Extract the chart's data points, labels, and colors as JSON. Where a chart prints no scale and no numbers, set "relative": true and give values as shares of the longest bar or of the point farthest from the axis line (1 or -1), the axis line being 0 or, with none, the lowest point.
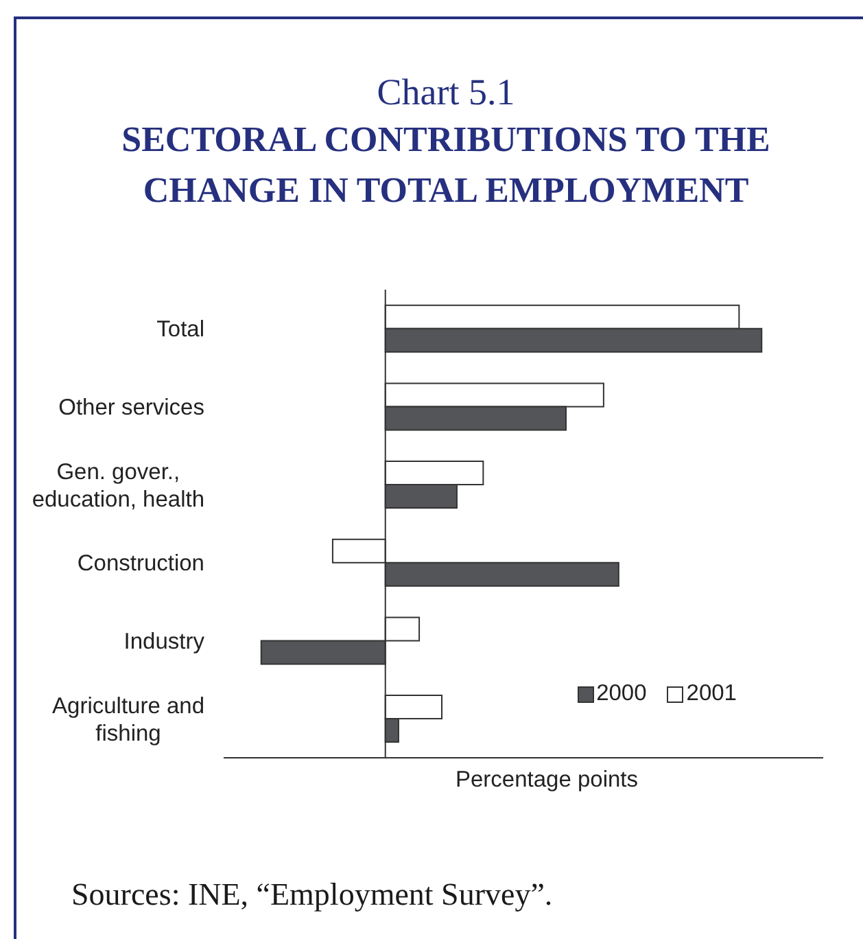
{
  "chart_data": {
    "type": "bar",
    "orientation": "horizontal",
    "relative": true,
    "title": "Chart 5.1",
    "subtitle": "SECTORAL CONTRIBUTIONS TO THE CHANGE IN TOTAL EMPLOYMENT",
    "xlabel": "Percentage points",
    "categories": [
      "Total",
      "Other services",
      "Gen. gover., education, health",
      "Construction",
      "Industry",
      "Agriculture and fishing"
    ],
    "series": [
      {
        "name": "2000",
        "color": "#545559",
        "values": [
          1,
          0.48,
          0.19,
          0.62,
          -0.33,
          0.035
        ]
      },
      {
        "name": "2001",
        "color": "#ffffff",
        "values": [
          0.94,
          0.58,
          0.26,
          -0.14,
          0.09,
          0.15
        ]
      }
    ],
    "legend": "bottom right",
    "annotations": [
      "Sources: INE, “Employment Survey”."
    ]
  }
}
